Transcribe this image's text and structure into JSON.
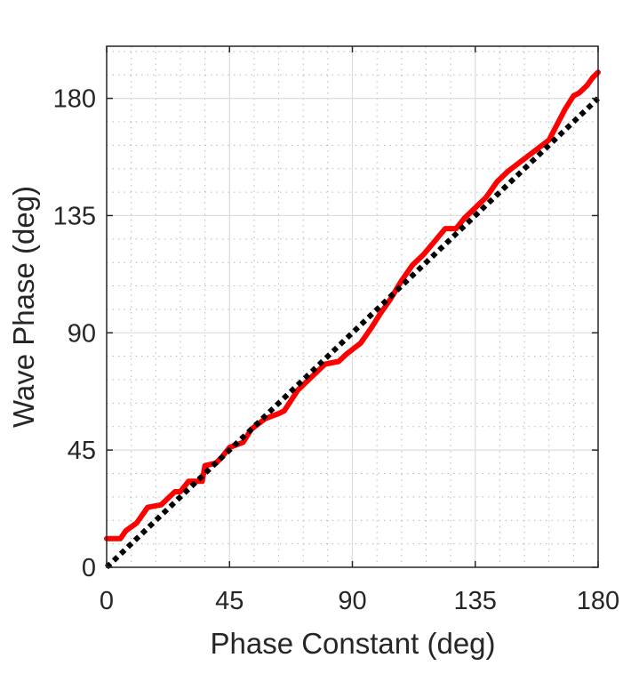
{
  "chart_data": {
    "type": "line",
    "title": "",
    "xlabel": "Phase Constant (deg)",
    "ylabel": "Wave Phase (deg)",
    "xlim": [
      0,
      180
    ],
    "ylim": [
      0,
      200
    ],
    "xticks": [
      0,
      45,
      90,
      135,
      180
    ],
    "yticks": [
      0,
      45,
      90,
      135,
      180
    ],
    "xtick_labels": [
      "0",
      "45",
      "90",
      "135",
      "180"
    ],
    "ytick_labels": [
      "0",
      "45",
      "90",
      "135",
      "180"
    ],
    "grid": "major and minor",
    "legend": "none",
    "series": [
      {
        "color": "#ff0000",
        "style": "solid",
        "x": [
          0,
          5,
          7,
          11,
          15,
          20,
          25,
          27,
          30,
          35,
          36,
          40,
          42,
          45,
          50,
          53,
          58,
          63,
          65,
          70,
          75,
          80,
          85,
          88,
          93,
          97,
          100,
          104,
          108,
          112,
          116,
          120,
          124,
          128,
          131,
          135,
          139,
          143,
          147,
          152,
          157,
          162,
          165,
          168,
          171,
          173,
          176,
          178,
          180
        ],
        "y": [
          11,
          11,
          14,
          17,
          23,
          24,
          29,
          29,
          33,
          33,
          39,
          40,
          42,
          46,
          48,
          53,
          57,
          59,
          60,
          68,
          73,
          78,
          79,
          82,
          86,
          92,
          97,
          103,
          110,
          116,
          120,
          125,
          130,
          130,
          134,
          138,
          142,
          148,
          152,
          156,
          160,
          164,
          170,
          176,
          181,
          182,
          185,
          188,
          190
        ]
      },
      {
        "color": "#000000",
        "style": "dotted",
        "x": [
          0,
          180
        ],
        "y": [
          0,
          180
        ]
      }
    ]
  }
}
